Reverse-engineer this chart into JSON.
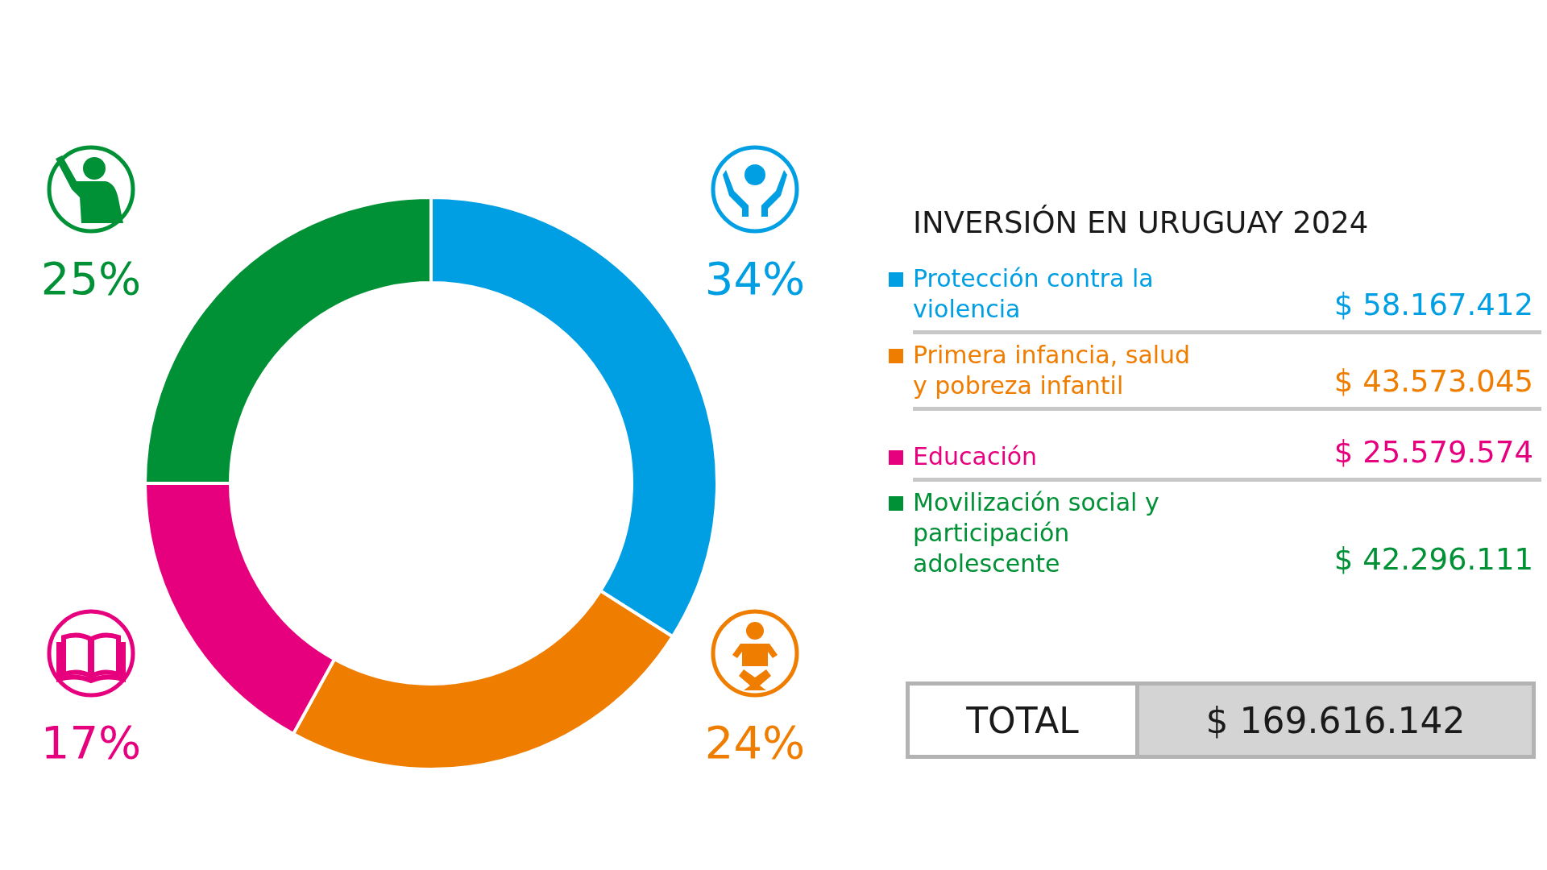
{
  "chart_data": {
    "type": "donut",
    "title": "INVERSIÓN EN URUGUAY 2024",
    "categories": [
      "Protección contra la violencia",
      "Primera infancia, salud y pobreza infantil",
      "Educación",
      "Movilización social y participación adolescente"
    ],
    "values": [
      34,
      24,
      17,
      25
    ],
    "colors": [
      "#009fe3",
      "#ef7d00",
      "#e6007e",
      "#009036"
    ],
    "value_labels": [
      "34%",
      "24%",
      "17%",
      "25%"
    ],
    "legend": "right",
    "annotations": [
      "$ 58.167.412",
      "$ 43.573.045",
      "$ 25.579.574",
      "$ 42.296.111",
      "TOTAL",
      "$ 169.616.142"
    ]
  }
}
